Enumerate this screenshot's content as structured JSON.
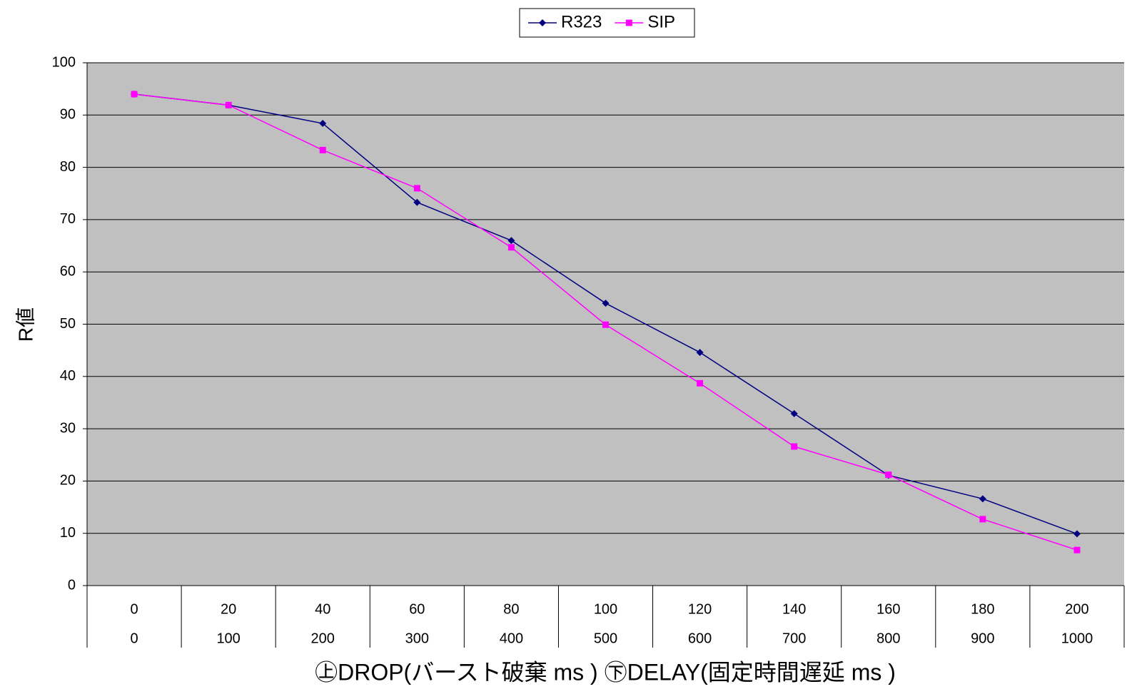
{
  "chart_data": {
    "type": "line",
    "y_label": "R値",
    "x_label": "㊤DROP(バースト破棄 ms ) ㊦DELAY(固定時間遅延 ms )",
    "categories": [
      "0",
      "20",
      "40",
      "60",
      "80",
      "100",
      "120",
      "140",
      "160",
      "180",
      "200"
    ],
    "categories_lower": [
      "0",
      "100",
      "200",
      "300",
      "400",
      "500",
      "600",
      "700",
      "800",
      "900",
      "1000"
    ],
    "series": [
      {
        "name": "R323",
        "color": "#000080",
        "marker": "diamond",
        "values": [
          94,
          91.9,
          88.4,
          73.3,
          66,
          54,
          44.6,
          32.9,
          21.1,
          16.6,
          9.9
        ]
      },
      {
        "name": "SIP",
        "color": "#ff00ff",
        "marker": "square",
        "values": [
          94,
          91.9,
          83.3,
          76,
          64.7,
          49.9,
          38.7,
          26.6,
          21.2,
          12.7,
          6.8
        ]
      }
    ],
    "ylim": [
      0,
      100
    ],
    "yticks": [
      0,
      10,
      20,
      30,
      40,
      50,
      60,
      70,
      80,
      90,
      100
    ],
    "grid": true,
    "legend": "top"
  }
}
